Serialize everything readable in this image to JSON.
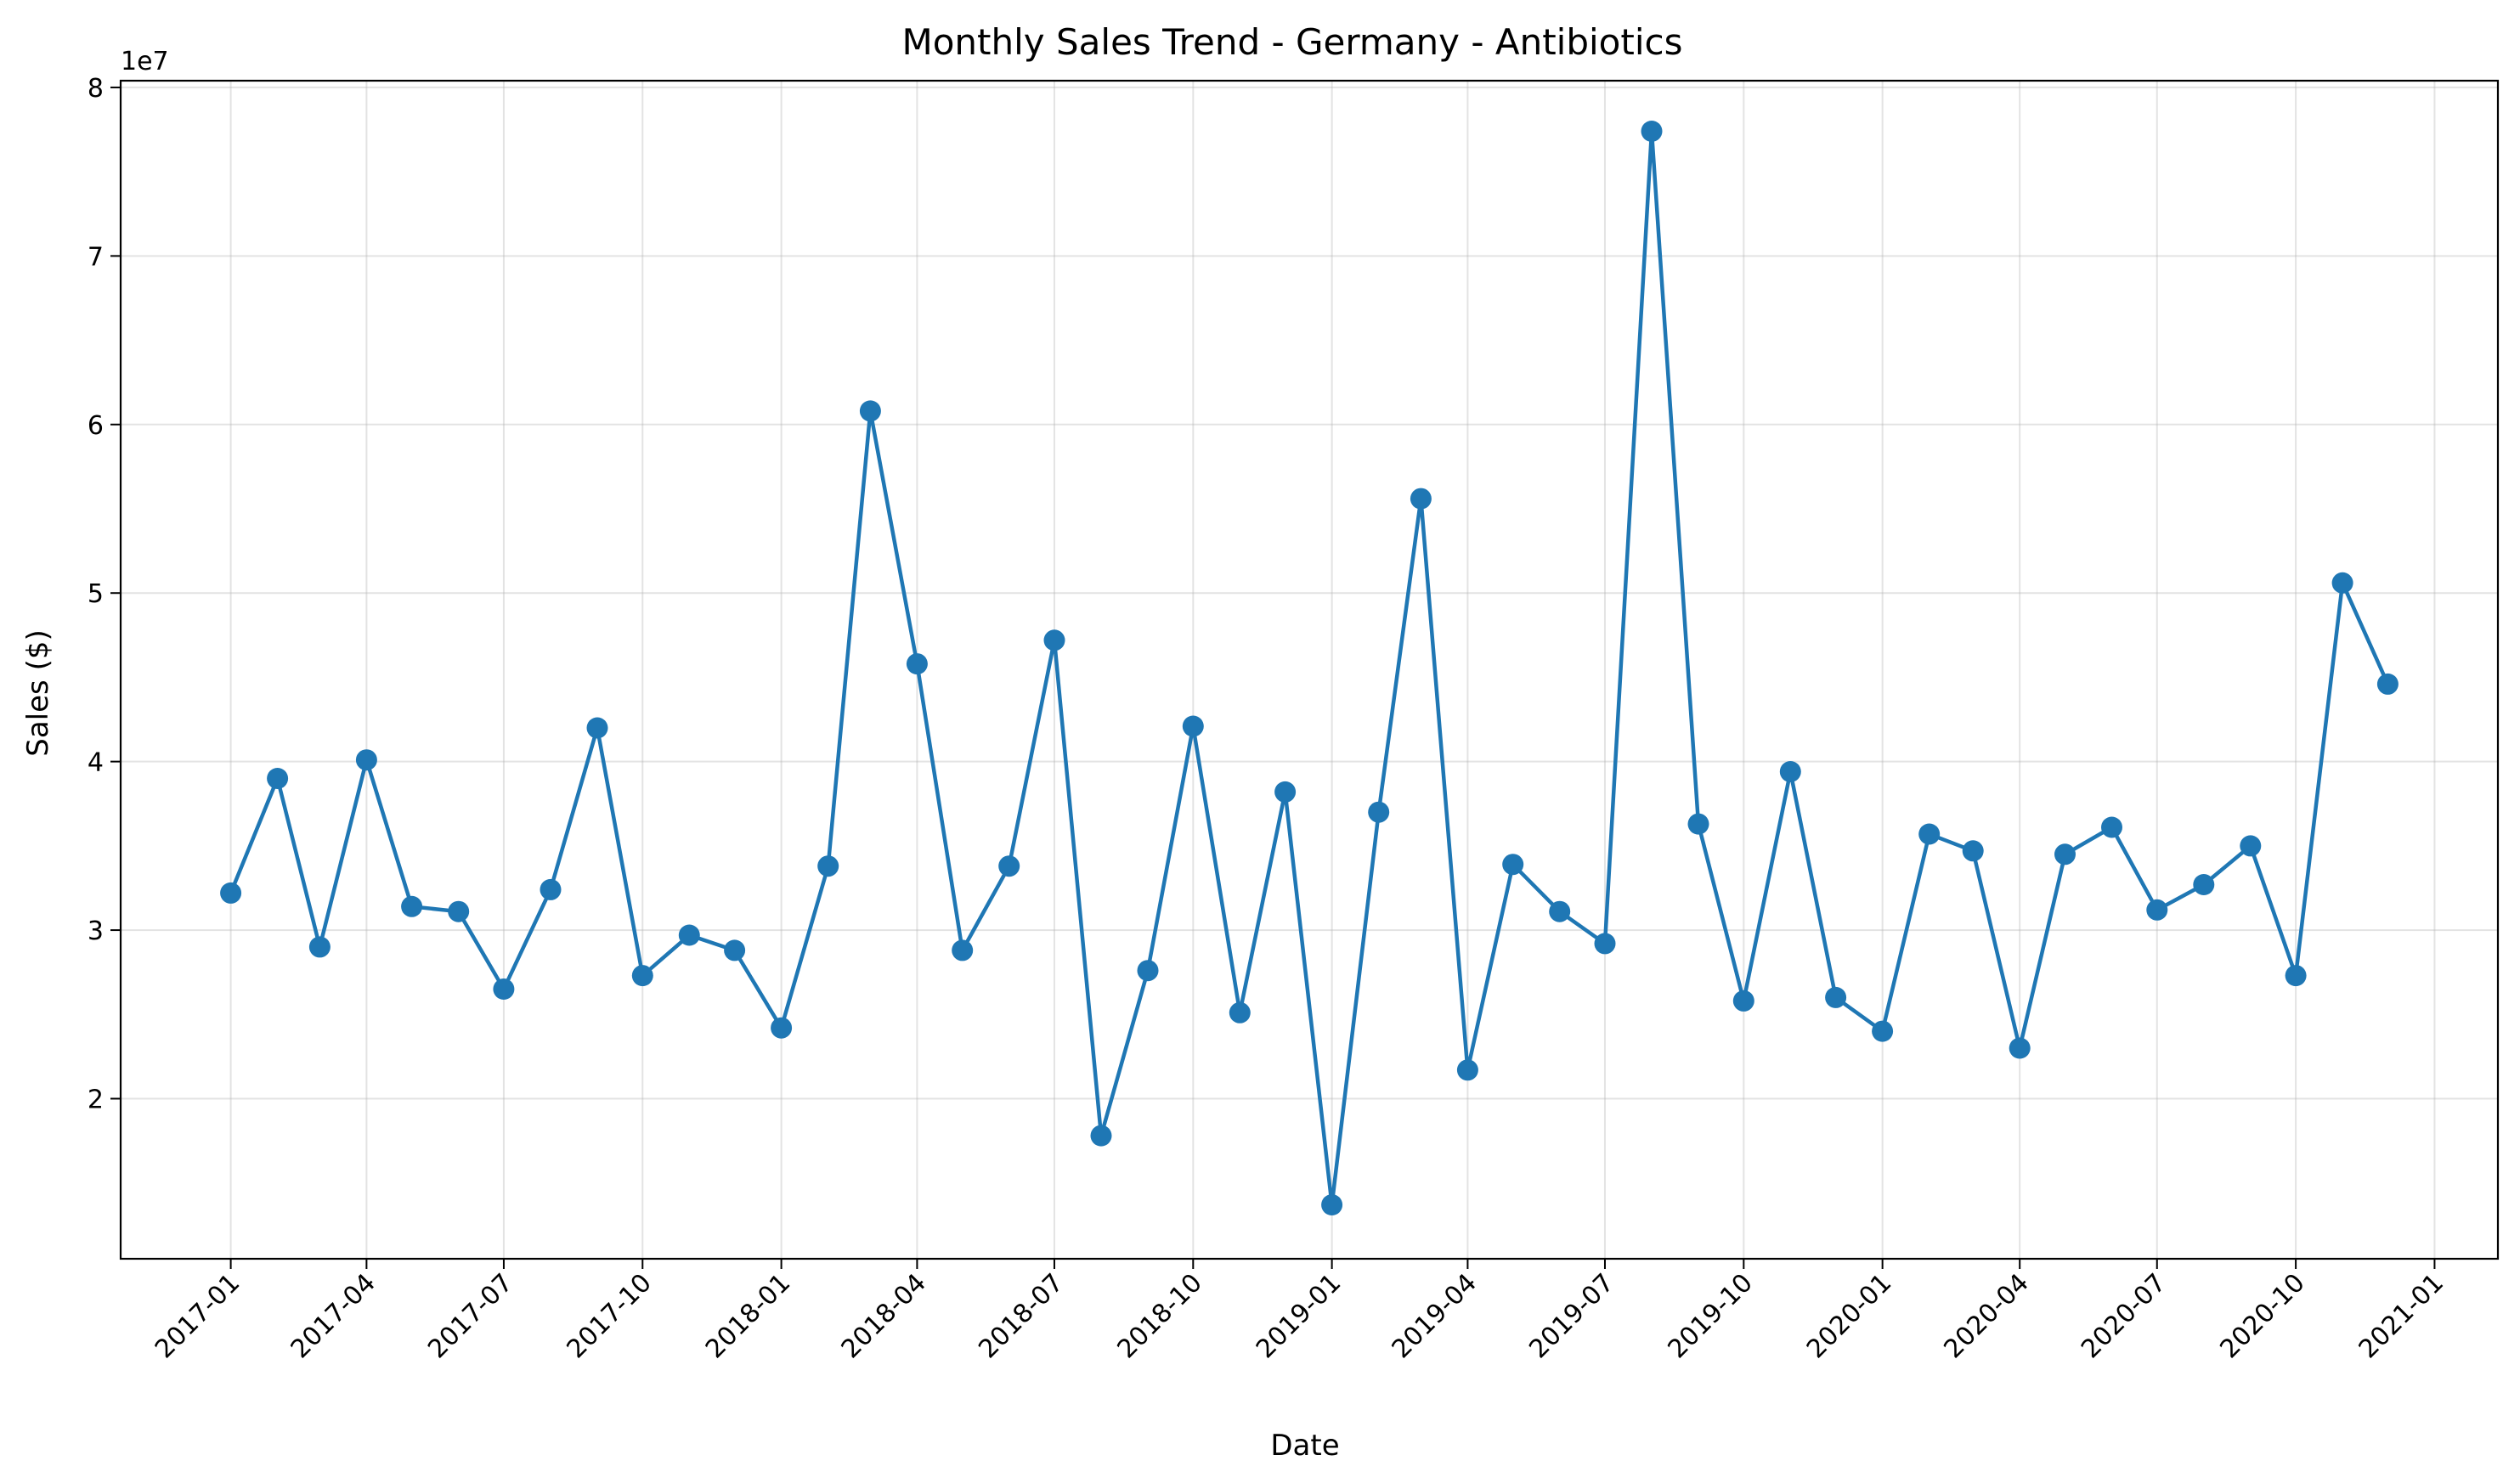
{
  "chart_data": {
    "type": "line",
    "title": "Monthly Sales Trend - Germany - Antibiotics",
    "xlabel": "Date",
    "ylabel": "Sales ($)",
    "y_offset_label": "1e7",
    "y_scale": 10000000,
    "ylim": [
      10500000,
      80400000
    ],
    "xlim": [
      "2016-10-20",
      "2021-02-12"
    ],
    "grid": true,
    "line_color": "#1f77b4",
    "x_ticks": [
      "2017-01",
      "2017-04",
      "2017-07",
      "2017-10",
      "2018-01",
      "2018-04",
      "2018-07",
      "2018-10",
      "2019-01",
      "2019-04",
      "2019-07",
      "2019-10",
      "2020-01",
      "2020-04",
      "2020-07",
      "2020-10",
      "2021-01"
    ],
    "y_ticks": [
      2,
      3,
      4,
      5,
      6,
      7,
      8
    ],
    "series": [
      {
        "x": [
          "2017-01",
          "2017-02",
          "2017-03",
          "2017-04",
          "2017-05",
          "2017-06",
          "2017-07",
          "2017-08",
          "2017-09",
          "2017-10",
          "2017-11",
          "2017-12",
          "2018-01",
          "2018-02",
          "2018-03",
          "2018-04",
          "2018-05",
          "2018-06",
          "2018-07",
          "2018-08",
          "2018-09",
          "2018-10",
          "2018-11",
          "2018-12",
          "2019-01",
          "2019-02",
          "2019-03",
          "2019-04",
          "2019-05",
          "2019-06",
          "2019-07",
          "2019-08",
          "2019-09",
          "2019-10",
          "2019-11",
          "2019-12",
          "2020-01",
          "2020-02",
          "2020-03",
          "2020-04",
          "2020-05",
          "2020-06",
          "2020-07",
          "2020-08",
          "2020-09",
          "2020-10",
          "2020-11",
          "2020-12"
        ],
        "values": [
          32200000,
          39000000,
          29000000,
          40100000,
          31400000,
          31100000,
          26500000,
          32400000,
          42000000,
          27300000,
          29700000,
          28800000,
          24200000,
          33800000,
          60800000,
          45800000,
          28800000,
          33800000,
          47200000,
          17800000,
          27600000,
          42100000,
          25100000,
          38200000,
          13700000,
          37000000,
          55600000,
          21700000,
          33900000,
          31100000,
          29200000,
          77400000,
          36300000,
          25800000,
          39400000,
          26000000,
          24000000,
          35700000,
          34700000,
          23000000,
          34500000,
          36100000,
          31200000,
          32700000,
          35000000,
          27300000,
          50600000,
          44600000
        ]
      }
    ]
  }
}
